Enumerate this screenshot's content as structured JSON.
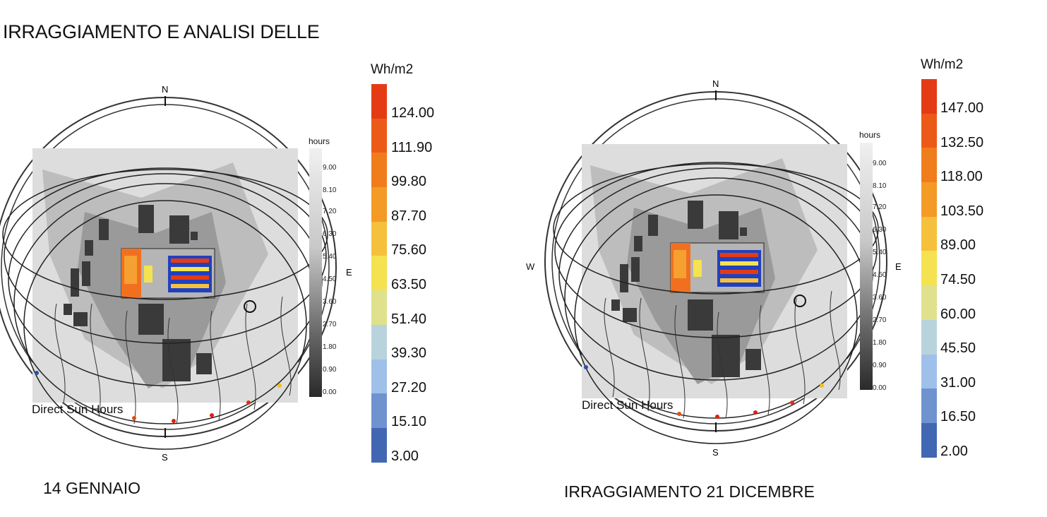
{
  "title": "IRRAGGIAMENTO E ANALISI DELLE",
  "panels": [
    {
      "caption": "14 GENNAIO",
      "legend_unit": "Wh/m2",
      "legend_ticks": [
        "124.00",
        "111.90",
        "99.80",
        "87.70",
        "75.60",
        "63.50",
        "51.40",
        "39.30",
        "27.20",
        "15.10",
        "3.00"
      ],
      "hours_title": "hours",
      "hours_ticks": [
        "9.00",
        "8.10",
        "7.20",
        "6.30",
        "5.40",
        "4.50",
        "3.60",
        "2.70",
        "1.80",
        "0.90",
        "0.00"
      ],
      "direct_sun_hours": "Direct Sun Hours",
      "compass": {
        "n": "N",
        "s": "S",
        "e": "E",
        "w": ""
      }
    },
    {
      "caption": "IRRAGGIAMENTO 21 DICEMBRE",
      "legend_unit": "Wh/m2",
      "legend_ticks": [
        "147.00",
        "132.50",
        "118.00",
        "103.50",
        "89.00",
        "74.50",
        "60.00",
        "45.50",
        "31.00",
        "16.50",
        "2.00"
      ],
      "hours_title": "hours",
      "hours_ticks": [
        "9.00",
        "8.10",
        "7.20",
        "6.30",
        "5.40",
        "4.50",
        "3.60",
        "2.70",
        "1.80",
        "0.90",
        "0.00"
      ],
      "direct_sun_hours": "Direct Sun Hours",
      "compass": {
        "n": "N",
        "s": "S",
        "e": "E",
        "w": "W"
      }
    }
  ],
  "legend_colors": [
    "#e43b14",
    "#ec5a18",
    "#f07d1c",
    "#f39b25",
    "#f5c03c",
    "#f4e250",
    "#dfe18d",
    "#b9d3dd",
    "#9fc0e8",
    "#6f93cf",
    "#4267b2"
  ]
}
